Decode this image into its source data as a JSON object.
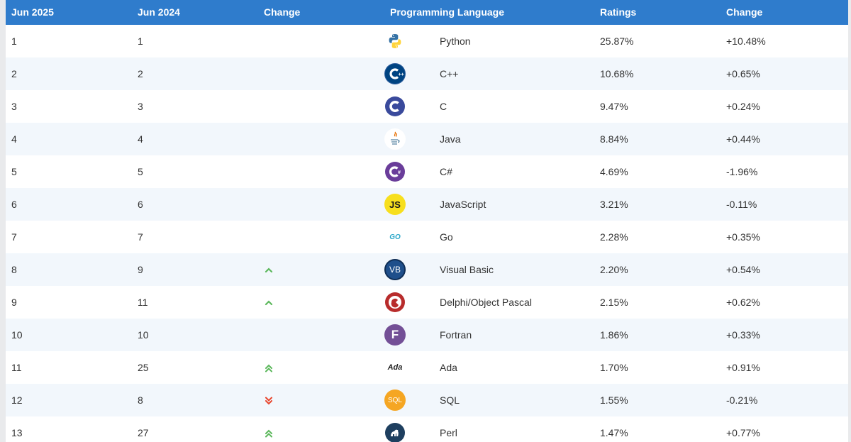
{
  "table": {
    "headers": [
      "Jun 2025",
      "Jun 2024",
      "Change",
      "Programming Language",
      "Ratings",
      "Change"
    ],
    "rows": [
      {
        "rank": "1",
        "prev": "1",
        "trend": "",
        "lang": "Python",
        "rating": "25.87%",
        "change": "+10.48%",
        "icon": "python-icon"
      },
      {
        "rank": "2",
        "prev": "2",
        "trend": "",
        "lang": "C++",
        "rating": "10.68%",
        "change": "+0.65%",
        "icon": "cplusplus-icon"
      },
      {
        "rank": "3",
        "prev": "3",
        "trend": "",
        "lang": "C",
        "rating": "9.47%",
        "change": "+0.24%",
        "icon": "c-icon"
      },
      {
        "rank": "4",
        "prev": "4",
        "trend": "",
        "lang": "Java",
        "rating": "8.84%",
        "change": "+0.44%",
        "icon": "java-icon"
      },
      {
        "rank": "5",
        "prev": "5",
        "trend": "",
        "lang": "C#",
        "rating": "4.69%",
        "change": "-1.96%",
        "icon": "csharp-icon"
      },
      {
        "rank": "6",
        "prev": "6",
        "trend": "",
        "lang": "JavaScript",
        "rating": "3.21%",
        "change": "-0.11%",
        "icon": "javascript-icon"
      },
      {
        "rank": "7",
        "prev": "7",
        "trend": "",
        "lang": "Go",
        "rating": "2.28%",
        "change": "+0.35%",
        "icon": "go-icon"
      },
      {
        "rank": "8",
        "prev": "9",
        "trend": "up",
        "lang": "Visual Basic",
        "rating": "2.20%",
        "change": "+0.54%",
        "icon": "visual-basic-icon"
      },
      {
        "rank": "9",
        "prev": "11",
        "trend": "up",
        "lang": "Delphi/Object Pascal",
        "rating": "2.15%",
        "change": "+0.62%",
        "icon": "delphi-icon"
      },
      {
        "rank": "10",
        "prev": "10",
        "trend": "",
        "lang": "Fortran",
        "rating": "1.86%",
        "change": "+0.33%",
        "icon": "fortran-icon"
      },
      {
        "rank": "11",
        "prev": "25",
        "trend": "up2",
        "lang": "Ada",
        "rating": "1.70%",
        "change": "+0.91%",
        "icon": "ada-icon"
      },
      {
        "rank": "12",
        "prev": "8",
        "trend": "down2",
        "lang": "SQL",
        "rating": "1.55%",
        "change": "-0.21%",
        "icon": "sql-icon"
      },
      {
        "rank": "13",
        "prev": "27",
        "trend": "up2",
        "lang": "Perl",
        "rating": "1.47%",
        "change": "+0.77%",
        "icon": "perl-icon"
      }
    ],
    "logo_text": {
      "javascript-icon": "JS",
      "go-icon": "GO",
      "visual-basic-icon": "VB",
      "fortran-icon": "F",
      "ada-icon": "Ada",
      "sql-icon": "SQL"
    }
  },
  "colors": {
    "header_bg": "#2f7ccc",
    "stripe": "#f2f7fc",
    "trend_up": "#5cb85c",
    "trend_down": "#e8452c"
  }
}
